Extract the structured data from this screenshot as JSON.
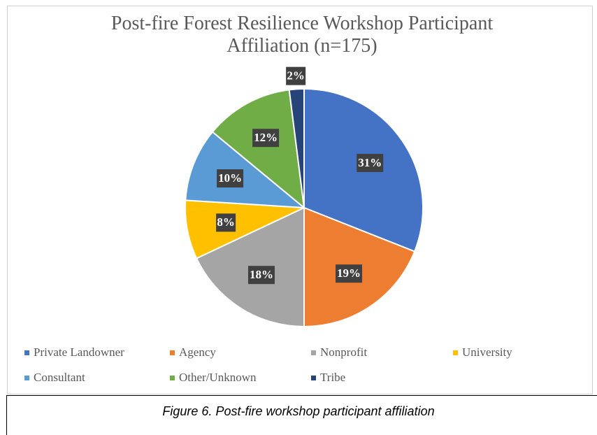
{
  "chart_data": {
    "type": "pie",
    "title": "Post-fire Forest Resilience Workshop Participant Affiliation (n=175)",
    "categories": [
      "Private Landowner",
      "Agency",
      "Nonprofit",
      "University",
      "Consultant",
      "Other/Unknown",
      "Tribe"
    ],
    "values": [
      31,
      19,
      18,
      8,
      10,
      12,
      2
    ],
    "value_labels": [
      "31%",
      "19%",
      "18%",
      "8%",
      "10%",
      "12%",
      "2%"
    ],
    "colors": [
      "#4472c4",
      "#ed7d31",
      "#a5a5a5",
      "#ffc000",
      "#5b9bd5",
      "#70ad47",
      "#264478"
    ],
    "legend": "bottom"
  },
  "caption": "Figure 6.  Post-fire workshop participant affiliation"
}
